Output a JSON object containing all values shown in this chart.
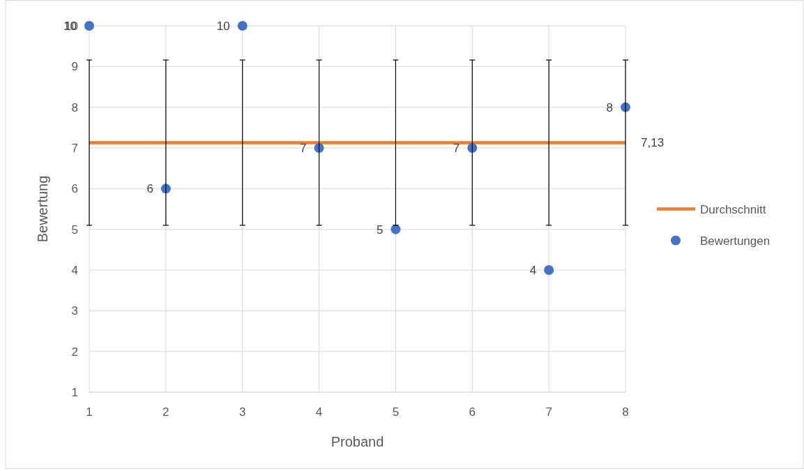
{
  "chart_data": {
    "type": "scatter",
    "xlabel": "Proband",
    "ylabel": "Bewertung",
    "xlim": [
      1,
      8
    ],
    "xticks": [
      1,
      2,
      3,
      4,
      5,
      6,
      7,
      8
    ],
    "ylim": [
      1,
      10
    ],
    "yticks": [
      1,
      2,
      3,
      4,
      5,
      6,
      7,
      8,
      9,
      10
    ],
    "grid": true,
    "legend": "right",
    "marker": "circle",
    "series": [
      {
        "name": "Durchschnitt",
        "type": "line",
        "color": "#ed7d31",
        "x": [
          1,
          2,
          3,
          4,
          5,
          6,
          7,
          8
        ],
        "values": [
          7.13,
          7.13,
          7.13,
          7.13,
          7.13,
          7.13,
          7.13,
          7.13
        ],
        "errors": [
          2.03,
          2.03,
          2.03,
          2.03,
          2.03,
          2.03,
          2.03,
          2.03
        ],
        "value_labels": [
          null,
          null,
          null,
          null,
          null,
          null,
          null,
          "7,13"
        ],
        "marker": "none"
      },
      {
        "name": "Bewertungen",
        "type": "scatter",
        "color": "#4472c4",
        "x": [
          1,
          2,
          3,
          4,
          5,
          6,
          7,
          8
        ],
        "values": [
          10,
          6,
          10,
          7,
          5,
          7,
          4,
          8
        ],
        "value_labels": [
          "10",
          "6",
          "10",
          "7",
          "5",
          "7",
          "4",
          "8"
        ]
      }
    ]
  }
}
